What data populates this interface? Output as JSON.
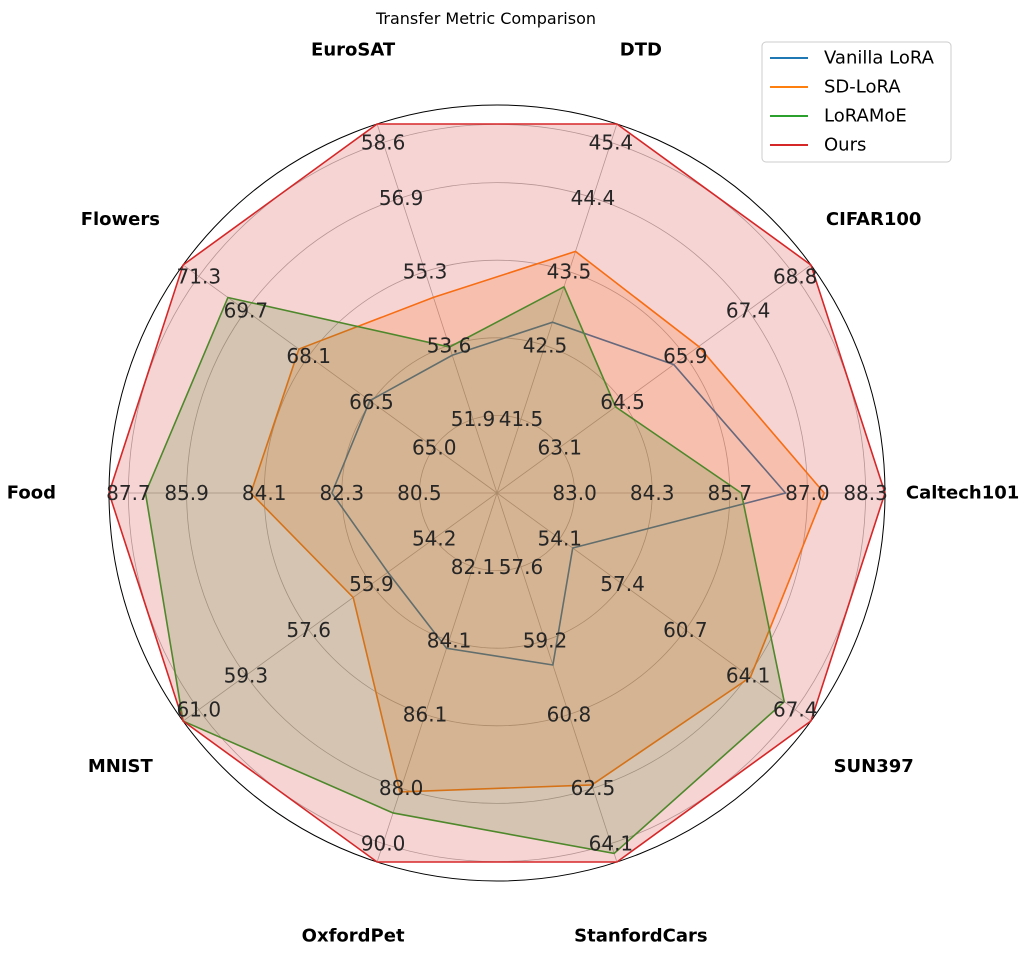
{
  "chart_data": {
    "type": "radar",
    "title": "Transfer Metric Comparison",
    "categories": [
      "Caltech101",
      "CIFAR100",
      "DTD",
      "EuroSAT",
      "Flowers",
      "Food",
      "MNIST",
      "OxfordPet",
      "StanfordCars",
      "SUN397"
    ],
    "axis_ticks": [
      [
        "83.0",
        "84.3",
        "85.7",
        "87.0",
        "88.3"
      ],
      [
        "63.1",
        "64.5",
        "65.9",
        "67.4",
        "68.8"
      ],
      [
        "41.5",
        "42.5",
        "43.5",
        "44.4",
        "45.4"
      ],
      [
        "51.9",
        "53.6",
        "55.3",
        "56.9",
        "58.6"
      ],
      [
        "65.0",
        "66.5",
        "68.1",
        "69.7",
        "71.3"
      ],
      [
        "80.5",
        "82.3",
        "84.1",
        "85.9",
        "87.7"
      ],
      [
        "54.2",
        "55.9",
        "57.6",
        "59.3",
        "61.0"
      ],
      [
        "82.1",
        "84.1",
        "86.1",
        "88.0",
        "90.0"
      ],
      [
        "57.6",
        "59.2",
        "60.8",
        "62.5",
        "64.1"
      ],
      [
        "54.1",
        "57.4",
        "60.7",
        "64.1",
        "67.4"
      ]
    ],
    "axis_ranges": [
      [
        81.7,
        88.3
      ],
      [
        61.7,
        68.8
      ],
      [
        40.5,
        45.4
      ],
      [
        50.2,
        58.6
      ],
      [
        63.4,
        71.3
      ],
      [
        78.7,
        87.7
      ],
      [
        52.5,
        61.0
      ],
      [
        80.1,
        90.0
      ],
      [
        56.0,
        64.1
      ],
      [
        50.8,
        67.4
      ]
    ],
    "series": [
      {
        "name": "Vanilla LoRA",
        "color": "#1f77b4",
        "fill": false,
        "values": [
          86.5,
          65.5,
          42.6,
          53.0,
          66.3,
          82.2,
          55.1,
          83.9,
          59.5,
          54.0
        ]
      },
      {
        "name": "SD-LoRA",
        "color": "#ff7f0e",
        "fill": true,
        "fill_opacity": 0.2,
        "values": [
          87.2,
          66.1,
          43.6,
          54.4,
          68.2,
          84.2,
          56.1,
          88.0,
          62.3,
          64.0
        ]
      },
      {
        "name": "LoRAMoE",
        "color": "#2ca02c",
        "fill": true,
        "fill_opacity": 0.2,
        "values": [
          85.7,
          64.1,
          43.1,
          53.2,
          70.1,
          86.8,
          61.0,
          88.6,
          63.9,
          65.9
        ]
      },
      {
        "name": "Ours",
        "color": "#d62728",
        "fill": true,
        "fill_opacity": 0.2,
        "values": [
          88.3,
          68.8,
          45.4,
          58.6,
          71.3,
          87.7,
          61.0,
          90.0,
          64.1,
          67.4
        ]
      }
    ],
    "grid": true,
    "legend_position": "top-right"
  }
}
